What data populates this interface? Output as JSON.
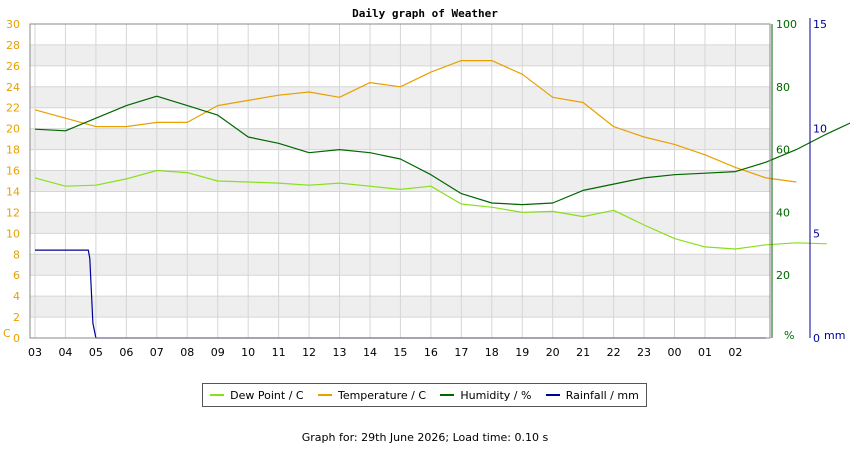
{
  "chart_data": {
    "type": "line",
    "title": "Daily graph of Weather",
    "x_tick_labels": [
      "03",
      "04",
      "05",
      "06",
      "07",
      "08",
      "09",
      "10",
      "11",
      "12",
      "13",
      "14",
      "15",
      "16",
      "17",
      "18",
      "19",
      "20",
      "21",
      "22",
      "23",
      "00",
      "01",
      "02"
    ],
    "axes": {
      "left": {
        "unit_label": "C",
        "ticks": [
          0,
          2,
          4,
          6,
          8,
          10,
          12,
          14,
          16,
          18,
          20,
          22,
          24,
          26,
          28,
          30
        ],
        "range": [
          0,
          30
        ],
        "color": "#e8a000"
      },
      "right1": {
        "unit_label": "%",
        "ticks": [
          20,
          40,
          60,
          80,
          100
        ],
        "range": [
          0,
          100
        ],
        "color": "#006600"
      },
      "right2": {
        "unit_label": "mm",
        "ticks": [
          0,
          5,
          10,
          15
        ],
        "range": [
          0,
          15
        ],
        "color": "#000099"
      }
    },
    "grid": true,
    "legend_position": "bottom",
    "series": [
      {
        "name": "Dew Point / C",
        "axis": "left",
        "color": "#88e01a",
        "points": [
          [
            0,
            15.3
          ],
          [
            1,
            14.5
          ],
          [
            2,
            14.6
          ],
          [
            3,
            15.2
          ],
          [
            4,
            16.0
          ],
          [
            5,
            15.8
          ],
          [
            6,
            15.0
          ],
          [
            7,
            14.9
          ],
          [
            8,
            14.8
          ],
          [
            9,
            14.6
          ],
          [
            10,
            14.8
          ],
          [
            11,
            14.5
          ],
          [
            12,
            14.2
          ],
          [
            13,
            14.5
          ],
          [
            14,
            12.8
          ],
          [
            15,
            12.5
          ],
          [
            16,
            12.0
          ],
          [
            17,
            12.1
          ],
          [
            18,
            11.6
          ],
          [
            19,
            12.2
          ],
          [
            20,
            10.8
          ],
          [
            21,
            9.5
          ],
          [
            22,
            8.7
          ],
          [
            23,
            8.5
          ],
          [
            24,
            8.9
          ],
          [
            25,
            9.1
          ],
          [
            26,
            9.0
          ]
        ]
      },
      {
        "name": "Temperature / C",
        "axis": "left",
        "color": "#e8a000",
        "points": [
          [
            0,
            21.8
          ],
          [
            1,
            21.0
          ],
          [
            2,
            20.2
          ],
          [
            3,
            20.2
          ],
          [
            4,
            20.6
          ],
          [
            5,
            20.6
          ],
          [
            6,
            22.2
          ],
          [
            7,
            22.7
          ],
          [
            8,
            23.2
          ],
          [
            9,
            23.5
          ],
          [
            10,
            23.0
          ],
          [
            11,
            24.4
          ],
          [
            12,
            24.0
          ],
          [
            13,
            25.4
          ],
          [
            14,
            26.5
          ],
          [
            15,
            26.5
          ],
          [
            16,
            25.2
          ],
          [
            17,
            23.0
          ],
          [
            18,
            22.5
          ],
          [
            19,
            20.2
          ],
          [
            20,
            19.2
          ],
          [
            21,
            18.5
          ],
          [
            22,
            17.5
          ],
          [
            23,
            16.3
          ],
          [
            24,
            15.3
          ],
          [
            25,
            14.9
          ]
        ]
      },
      {
        "name": "Humidity / %",
        "axis": "right1",
        "color": "#006600",
        "points": [
          [
            0,
            66.5
          ],
          [
            1,
            66.0
          ],
          [
            2,
            70.0
          ],
          [
            3,
            74.0
          ],
          [
            4,
            77.0
          ],
          [
            5,
            74.0
          ],
          [
            6,
            71.0
          ],
          [
            7,
            64.0
          ],
          [
            8,
            62.0
          ],
          [
            9,
            59.0
          ],
          [
            10,
            60.0
          ],
          [
            11,
            59.0
          ],
          [
            12,
            57.0
          ],
          [
            13,
            52.0
          ],
          [
            14,
            46.0
          ],
          [
            15,
            43.0
          ],
          [
            16,
            42.5
          ],
          [
            17,
            43.0
          ],
          [
            18,
            47.0
          ],
          [
            19,
            49.0
          ],
          [
            20,
            51.0
          ],
          [
            21,
            52.0
          ],
          [
            22,
            52.5
          ],
          [
            23,
            53.0
          ],
          [
            24,
            56.0
          ],
          [
            25,
            60.0
          ],
          [
            26,
            65.0
          ],
          [
            27,
            69.5
          ]
        ]
      },
      {
        "name": "Rainfall / mm",
        "axis": "right2",
        "color": "#000099",
        "points": [
          [
            0,
            4.2
          ],
          [
            1,
            4.2
          ],
          [
            1.75,
            4.2
          ],
          [
            1.8,
            3.8
          ],
          [
            1.9,
            0.7
          ],
          [
            2,
            0
          ],
          [
            24,
            0
          ]
        ]
      }
    ]
  },
  "footer": "Graph for: 29th June 2026; Load time: 0.10 s"
}
